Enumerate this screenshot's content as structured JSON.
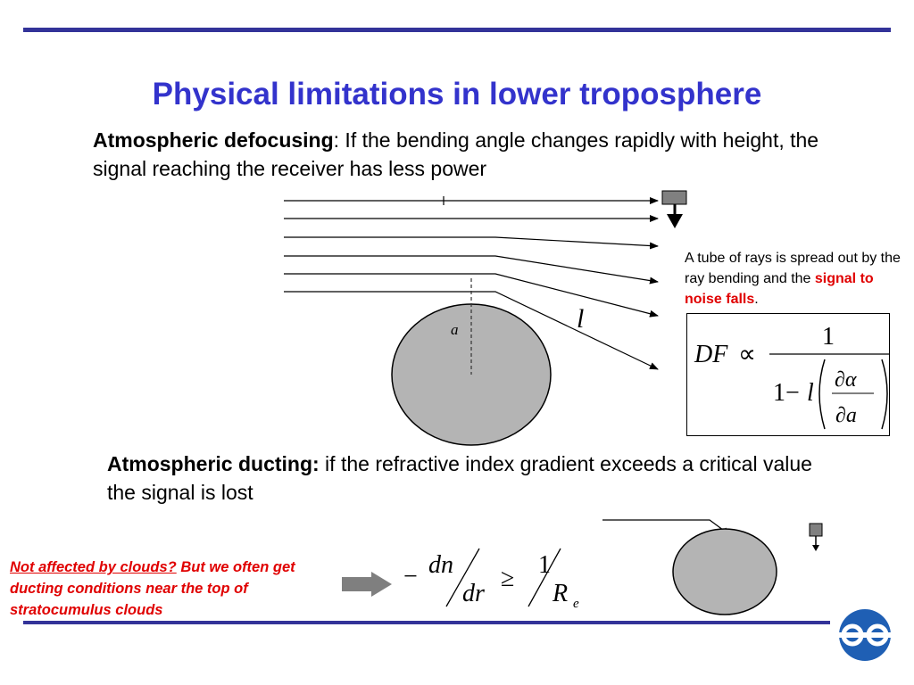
{
  "slide": {
    "title": "Physical limitations in lower troposphere",
    "defocusing": {
      "heading": "Atmospheric defocusing",
      "text": ": If the bending angle changes rapidly with height, the signal reaching the receiver has less power"
    },
    "tube_note": {
      "text": "A tube of rays is spread out by the ray bending and the ",
      "highlight": "signal to noise falls",
      "end": "."
    },
    "diagram": {
      "label_a": "a",
      "label_l": "l"
    },
    "formula_df": {
      "lhs": "DF",
      "prop": "∝",
      "numerator": "1",
      "denom_prefix": "1−",
      "denom_l": "l",
      "partial_alpha": "∂α",
      "partial_a": "∂a"
    },
    "ducting": {
      "heading": "Atmospheric ducting:",
      "text": " if the refractive index gradient exceeds a critical value the signal is lost"
    },
    "clouds_note": {
      "underlined": "Not affected by clouds?",
      "rest": " But we often get ducting conditions near the top of stratocumulus clouds"
    },
    "formula_duct": {
      "minus": "−",
      "dn": "dn",
      "dr": "dr",
      "geq": "≥",
      "one": "1",
      "R": "R",
      "sub": "e"
    },
    "colors": {
      "title": "#3333cc",
      "rule": "#333399",
      "highlight": "#e00000",
      "earth": "#b4b4b4",
      "logo": "#1f5fb4"
    },
    "logo_icon": "ecmwf-logo-icon"
  }
}
